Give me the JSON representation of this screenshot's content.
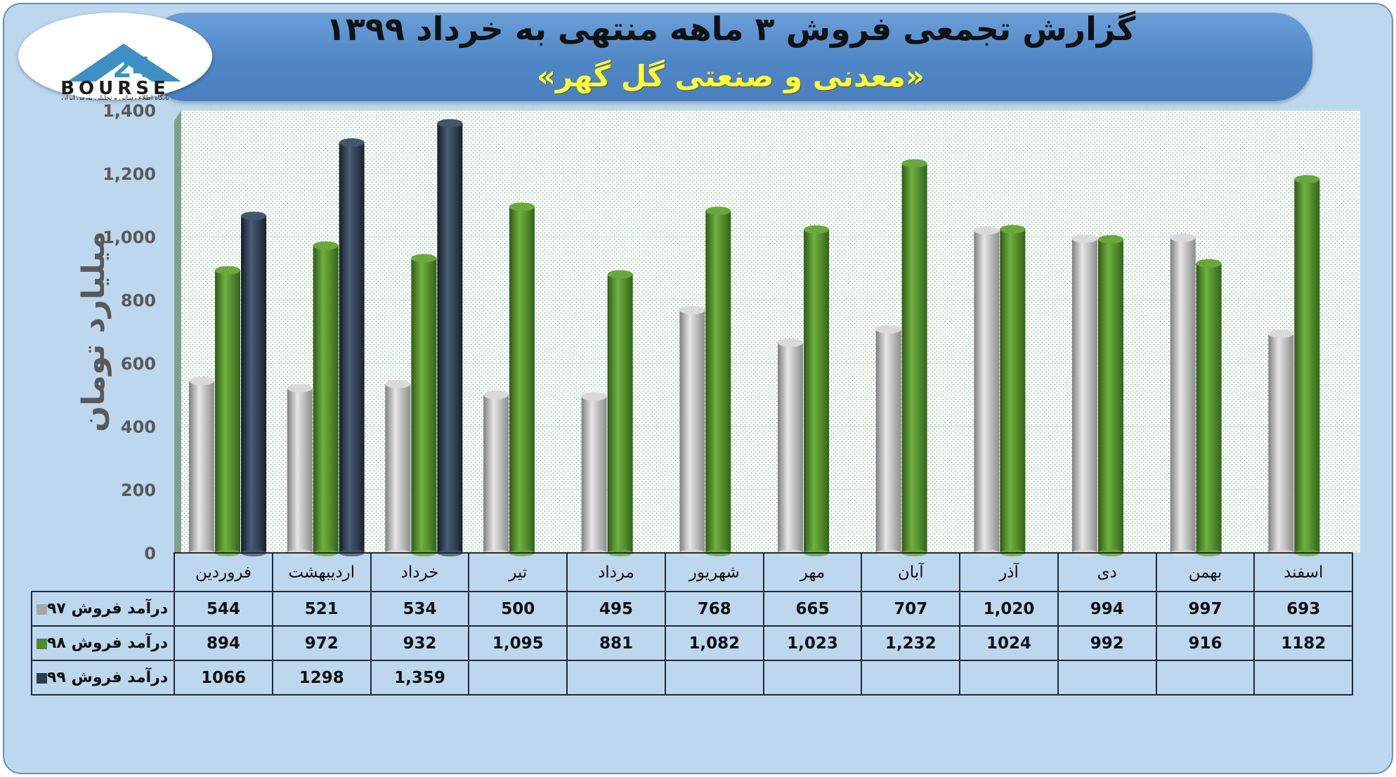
{
  "header": {
    "title": "گزارش تجمعی فروش ۳ ماهه منتهی به خرداد ۱۳۹۹",
    "subtitle": "«معدنی و صنعتی گل گهر»"
  },
  "logo": {
    "brand": "BOURSE",
    "tagline": "پایگاه اطلاع رسانی و تحلیلی بورس ایران"
  },
  "chart_data": {
    "type": "bar",
    "ylabel": "میلیارد تومان",
    "ylim": [
      0,
      1400
    ],
    "yticks": [
      "0",
      "200",
      "400",
      "600",
      "800",
      "1,000",
      "1,200",
      "1,400"
    ],
    "grid": true,
    "categories": [
      "فروردین",
      "اردیبهشت",
      "خرداد",
      "تیر",
      "مرداد",
      "شهریور",
      "مهر",
      "آبان",
      "آذر",
      "دی",
      "بهمن",
      "اسفند"
    ],
    "series": [
      {
        "name": "درآمد فروش ۹۷",
        "color": "#a6a6a6",
        "values": [
          544,
          521,
          534,
          500,
          495,
          768,
          665,
          707,
          1020,
          994,
          997,
          693
        ],
        "labels": [
          "544",
          "521",
          "534",
          "500",
          "495",
          "768",
          "665",
          "707",
          "1,020",
          "994",
          "997",
          "693"
        ]
      },
      {
        "name": "درآمد فروش ۹۸",
        "color": "#4f8a2c",
        "values": [
          894,
          972,
          932,
          1095,
          881,
          1082,
          1023,
          1232,
          1024,
          992,
          916,
          1182
        ],
        "labels": [
          "894",
          "972",
          "932",
          "1,095",
          "881",
          "1,082",
          "1,023",
          "1,232",
          "1024",
          "992",
          "916",
          "1182"
        ]
      },
      {
        "name": "درآمد فروش ۹۹",
        "color": "#2b3a4e",
        "values": [
          1066,
          1298,
          1359,
          null,
          null,
          null,
          null,
          null,
          null,
          null,
          null,
          null
        ],
        "labels": [
          "1066",
          "1298",
          "1,359",
          "",
          "",
          "",
          "",
          "",
          "",
          "",
          "",
          ""
        ]
      }
    ]
  }
}
